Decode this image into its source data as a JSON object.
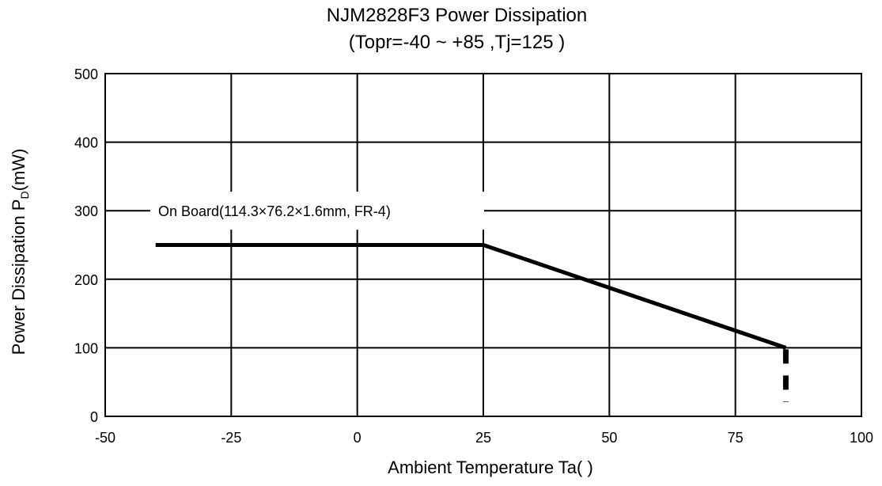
{
  "chart_data": {
    "type": "line",
    "title": "NJM2828F3 Power Dissipation",
    "subtitle": "(Topr=-40 ~ +85    ,Tj=125    )",
    "xlabel": "Ambient Temperature Ta(    )",
    "ylabel_main": "Power Dissipation P",
    "ylabel_sub": "D",
    "ylabel_unit": "(mW)",
    "xlim": [
      -50,
      100
    ],
    "ylim": [
      0,
      500
    ],
    "x_ticks": [
      "-50",
      "-25",
      "0",
      "25",
      "50",
      "75",
      "100"
    ],
    "y_ticks": [
      "0",
      "100",
      "200",
      "300",
      "400",
      "500"
    ],
    "grid": true,
    "series": [
      {
        "name": "On Board(114.3×76.2×1.6mm, FR-4)",
        "x": [
          -40,
          25,
          85
        ],
        "y": [
          250,
          250,
          100
        ],
        "style": "solid",
        "color": "#000000"
      },
      {
        "x": [
          85,
          85
        ],
        "y": [
          100,
          0
        ],
        "style": "dashed",
        "color": "#000000"
      }
    ],
    "annotation": "On Board(114.3×76.2×1.6mm, FR-4)"
  }
}
